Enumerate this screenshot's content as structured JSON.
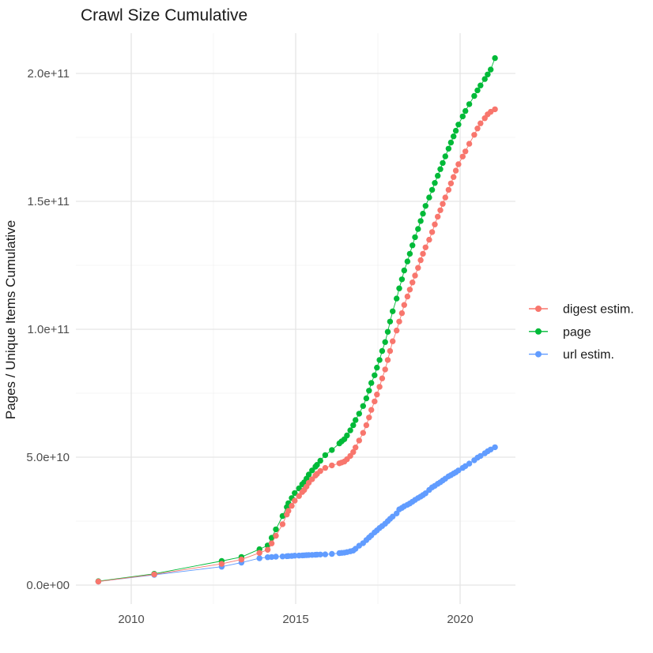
{
  "chart_data": {
    "type": "line",
    "title": "Crawl Size Cumulative",
    "xlabel": "",
    "ylabel": "Pages / Unique Items Cumulative",
    "grid": true,
    "legend_position": "right",
    "x_axis": {
      "tick_labels": [
        "2010",
        "2015",
        "2020"
      ],
      "tick_years": [
        2010,
        2015,
        2020
      ],
      "minor_grid_years": [
        2012.5,
        2017.5
      ],
      "range_years": [
        2008.32,
        2021.68
      ]
    },
    "y_axis": {
      "tick_labels": [
        "0.0e+00",
        "5.0e+10",
        "1.0e+11",
        "1.5e+11",
        "2.0e+11"
      ],
      "tick_values_e9": [
        0,
        50,
        100,
        150,
        200
      ],
      "minor_grid_values_e9": [
        25,
        75,
        125,
        175
      ],
      "range_e9": [
        -7.5,
        215.7
      ]
    },
    "x_years": [
      2009.0,
      2010.7,
      2012.75,
      2013.35,
      2013.9,
      2014.15,
      2014.27,
      2014.4,
      2014.6,
      2014.73,
      2014.78,
      2014.88,
      2014.97,
      2015.1,
      2015.2,
      2015.26,
      2015.33,
      2015.4,
      2015.5,
      2015.6,
      2015.65,
      2015.75,
      2015.9,
      2016.1,
      2016.33,
      2016.4,
      2016.48,
      2016.56,
      2016.66,
      2016.75,
      2016.82,
      2016.93,
      2017.05,
      2017.15,
      2017.23,
      2017.3,
      2017.4,
      2017.47,
      2017.55,
      2017.63,
      2017.72,
      2017.8,
      2017.87,
      2017.95,
      2018.07,
      2018.15,
      2018.23,
      2018.3,
      2018.4,
      2018.47,
      2018.55,
      2018.63,
      2018.72,
      2018.8,
      2018.87,
      2018.95,
      2019.06,
      2019.15,
      2019.23,
      2019.32,
      2019.4,
      2019.47,
      2019.55,
      2019.65,
      2019.72,
      2019.8,
      2019.87,
      2019.95,
      2020.08,
      2020.16,
      2020.28,
      2020.43,
      2020.53,
      2020.62,
      2020.75,
      2020.84,
      2020.93,
      2021.06
    ],
    "series": [
      {
        "name": "digest estim.",
        "color": "#F8766D",
        "y_e9": [
          1.4,
          4.2,
          8.3,
          10.0,
          12.6,
          13.8,
          16.3,
          19.3,
          23.8,
          27.6,
          29.0,
          31.0,
          33.0,
          34.8,
          36.4,
          37.2,
          38.5,
          40.0,
          41.4,
          42.8,
          43.5,
          44.6,
          45.8,
          46.8,
          47.6,
          47.9,
          48.3,
          49.2,
          50.5,
          52.0,
          53.8,
          56.5,
          59.5,
          62.5,
          65.5,
          68.5,
          71.8,
          74.5,
          77.5,
          80.8,
          84.3,
          88.0,
          91.5,
          95.3,
          99.5,
          103.0,
          106.3,
          109.5,
          112.8,
          115.5,
          118.3,
          121.0,
          124.0,
          127.0,
          129.5,
          132.0,
          135.0,
          138.0,
          141.0,
          144.0,
          146.5,
          149.0,
          151.5,
          154.5,
          157.0,
          159.5,
          162.0,
          164.5,
          167.5,
          169.5,
          172.5,
          176.0,
          178.5,
          180.5,
          182.5,
          184.0,
          185.0,
          186.0
        ]
      },
      {
        "name": "page",
        "color": "#00BA38",
        "y_e9": [
          1.5,
          4.4,
          9.4,
          11.0,
          14.0,
          15.5,
          18.5,
          21.8,
          27.0,
          30.5,
          32.0,
          34.0,
          36.0,
          37.8,
          39.4,
          40.2,
          41.6,
          43.2,
          44.8,
          46.3,
          47.0,
          48.6,
          50.8,
          52.8,
          55.4,
          56.2,
          57.0,
          58.5,
          60.5,
          62.5,
          64.5,
          67.0,
          70.0,
          73.0,
          76.0,
          79.0,
          82.0,
          85.0,
          88.0,
          91.5,
          95.0,
          99.0,
          103.0,
          107.0,
          112.0,
          116.0,
          119.5,
          123.0,
          126.5,
          129.5,
          132.8,
          136.0,
          139.2,
          142.3,
          145.2,
          148.2,
          151.5,
          154.5,
          157.2,
          160.0,
          162.6,
          165.0,
          167.6,
          170.6,
          173.0,
          175.4,
          177.6,
          180.0,
          183.2,
          185.3,
          188.0,
          191.2,
          193.4,
          195.3,
          197.8,
          199.6,
          201.5,
          206.0
        ]
      },
      {
        "name": "url estim.",
        "color": "#619CFF",
        "y_e9": [
          1.4,
          4.0,
          7.2,
          8.8,
          10.5,
          10.9,
          11.0,
          11.1,
          11.2,
          11.3,
          11.35,
          11.4,
          11.5,
          11.55,
          11.6,
          11.65,
          11.7,
          11.75,
          11.8,
          11.85,
          11.9,
          11.95,
          12.0,
          12.2,
          12.5,
          12.6,
          12.7,
          12.9,
          13.2,
          13.5,
          14.2,
          15.4,
          16.4,
          17.6,
          18.6,
          19.4,
          20.6,
          21.4,
          22.3,
          23.1,
          24.0,
          25.0,
          25.9,
          26.8,
          28.0,
          29.6,
          30.2,
          30.8,
          31.4,
          31.9,
          32.6,
          33.3,
          34.0,
          34.6,
          35.2,
          35.9,
          37.2,
          38.2,
          38.8,
          39.6,
          40.2,
          40.9,
          41.6,
          42.5,
          43.0,
          43.6,
          44.1,
          44.8,
          45.8,
          46.5,
          47.5,
          48.8,
          49.8,
          50.5,
          51.5,
          52.3,
          53.0,
          53.9
        ]
      }
    ],
    "colors": {
      "major_grid": "#e5e5e5",
      "minor_grid": "#f0f0f0",
      "tick_text": "#4d4d4d",
      "text": "#1a1a1a",
      "background": "#ffffff"
    }
  },
  "legend": {
    "items": [
      {
        "label": "digest estim.",
        "color": "#F8766D"
      },
      {
        "label": "page",
        "color": "#00BA38"
      },
      {
        "label": "url estim.",
        "color": "#619CFF"
      }
    ]
  }
}
